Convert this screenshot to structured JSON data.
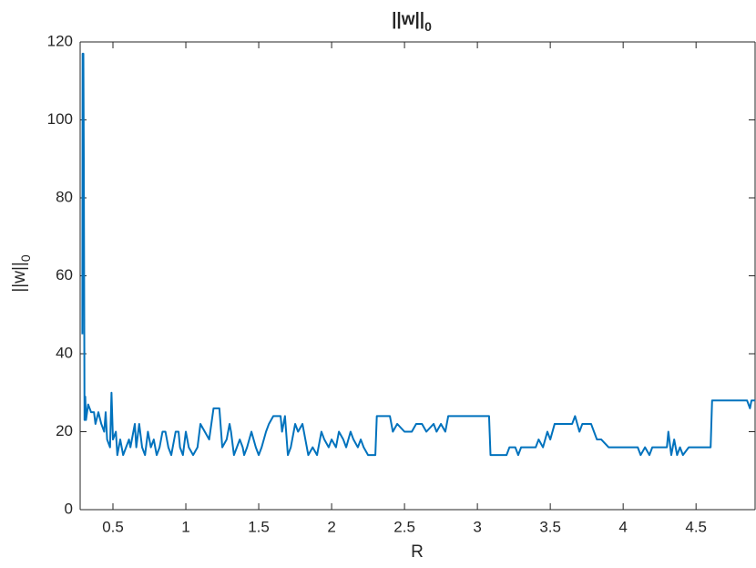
{
  "chart_data": {
    "type": "line",
    "title": "||w||",
    "title_subscript": "0",
    "x_label": "R",
    "y_label": "||w||",
    "y_label_subscript": "0",
    "xlim": [
      0.275,
      4.905
    ],
    "ylim": [
      0,
      120
    ],
    "xticks": [
      0.5,
      1,
      1.5,
      2,
      2.5,
      3,
      3.5,
      4,
      4.5
    ],
    "yticks": [
      0,
      20,
      40,
      60,
      80,
      100,
      120
    ],
    "grid": false,
    "x": [
      0.29,
      0.292,
      0.297,
      0.3,
      0.305,
      0.31,
      0.315,
      0.33,
      0.35,
      0.37,
      0.38,
      0.4,
      0.42,
      0.44,
      0.45,
      0.46,
      0.48,
      0.49,
      0.5,
      0.52,
      0.53,
      0.55,
      0.57,
      0.59,
      0.61,
      0.62,
      0.65,
      0.66,
      0.68,
      0.7,
      0.72,
      0.74,
      0.76,
      0.78,
      0.8,
      0.82,
      0.84,
      0.86,
      0.88,
      0.9,
      0.93,
      0.95,
      0.96,
      0.98,
      1.0,
      1.02,
      1.05,
      1.08,
      1.1,
      1.13,
      1.16,
      1.19,
      1.23,
      1.25,
      1.28,
      1.3,
      1.31,
      1.33,
      1.35,
      1.37,
      1.39,
      1.4,
      1.42,
      1.45,
      1.48,
      1.5,
      1.52,
      1.55,
      1.57,
      1.6,
      1.65,
      1.66,
      1.68,
      1.7,
      1.72,
      1.75,
      1.77,
      1.8,
      1.82,
      1.84,
      1.87,
      1.9,
      1.93,
      1.95,
      1.98,
      2.0,
      2.03,
      2.05,
      2.08,
      2.1,
      2.13,
      2.15,
      2.18,
      2.2,
      2.22,
      2.25,
      2.3,
      2.31,
      2.4,
      2.42,
      2.45,
      2.5,
      2.55,
      2.58,
      2.62,
      2.65,
      2.7,
      2.72,
      2.75,
      2.78,
      2.8,
      3.0,
      3.08,
      3.09,
      3.2,
      3.22,
      3.26,
      3.28,
      3.3,
      3.4,
      3.42,
      3.45,
      3.48,
      3.5,
      3.53,
      3.6,
      3.65,
      3.67,
      3.7,
      3.72,
      3.78,
      3.8,
      3.82,
      3.85,
      3.9,
      4.0,
      4.1,
      4.12,
      4.15,
      4.18,
      4.2,
      4.3,
      4.31,
      4.33,
      4.35,
      4.37,
      4.39,
      4.41,
      4.45,
      4.6,
      4.61,
      4.85,
      4.87,
      4.88,
      4.905
    ],
    "series": [
      {
        "color": "#0072bd",
        "values": [
          45,
          117,
          117,
          90,
          23,
          29,
          23,
          27,
          25,
          25,
          22,
          25,
          22,
          20,
          25,
          18,
          16,
          30,
          18,
          20,
          14,
          18,
          14,
          16,
          18,
          16,
          22,
          16,
          22,
          16,
          14,
          20,
          16,
          18,
          14,
          16,
          20,
          20,
          16,
          14,
          20,
          20,
          16,
          14,
          20,
          16,
          14,
          16,
          22,
          20,
          18,
          26,
          26,
          16,
          18,
          22,
          20,
          14,
          16,
          18,
          16,
          14,
          16,
          20,
          16,
          14,
          16,
          20,
          22,
          24,
          24,
          20,
          24,
          14,
          16,
          22,
          20,
          22,
          18,
          14,
          16,
          14,
          20,
          18,
          16,
          18,
          16,
          20,
          18,
          16,
          20,
          18,
          16,
          18,
          16,
          14,
          14,
          24,
          24,
          20,
          22,
          20,
          20,
          22,
          22,
          20,
          22,
          20,
          22,
          20,
          24,
          24,
          24,
          14,
          14,
          16,
          16,
          14,
          16,
          16,
          18,
          16,
          20,
          18,
          22,
          22,
          22,
          24,
          20,
          22,
          22,
          20,
          18,
          18,
          16,
          16,
          16,
          14,
          16,
          14,
          16,
          16,
          20,
          14,
          18,
          14,
          16,
          14,
          16,
          16,
          28,
          28,
          26,
          28,
          28
        ]
      }
    ]
  }
}
